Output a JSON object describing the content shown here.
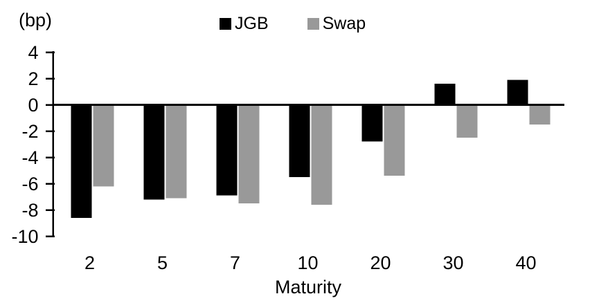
{
  "chart_data": {
    "type": "bar",
    "title": "",
    "unit_label": "(bp)",
    "xlabel": "Maturity",
    "ylabel": "",
    "categories": [
      "2",
      "5",
      "7",
      "10",
      "20",
      "30",
      "40"
    ],
    "series": [
      {
        "name": "JGB",
        "color": "#000000",
        "values": [
          -8.6,
          -7.2,
          -6.9,
          -5.5,
          -2.8,
          1.6,
          1.9
        ]
      },
      {
        "name": "Swap",
        "color": "#999999",
        "values": [
          -6.2,
          -7.1,
          -7.5,
          -7.6,
          -5.4,
          -2.5,
          -1.5
        ]
      }
    ],
    "y_ticks": [
      4,
      2,
      0,
      -2,
      -4,
      -6,
      -8,
      -10
    ],
    "ylim": [
      -10,
      4
    ],
    "grid": false,
    "legend_position": "top",
    "axis_color": "#000000",
    "background_color": "#ffffff"
  }
}
